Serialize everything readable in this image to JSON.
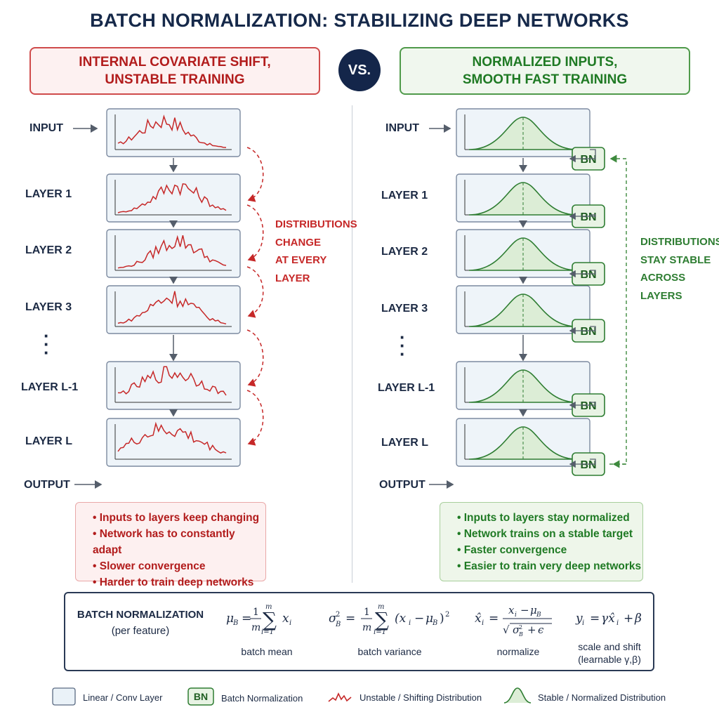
{
  "title": "BATCH NORMALIZATION: STABILIZING DEEP NETWORKS",
  "vs_label": "VS.",
  "left": {
    "banner_line1": "INTERNAL COVARIATE SHIFT,",
    "banner_line2": "UNSTABLE TRAINING",
    "input_label": "INPUT",
    "output_label": "OUTPUT",
    "layer_labels": [
      "LAYER 1",
      "LAYER 2",
      "LAYER 3",
      "LAYER L-1",
      "LAYER L"
    ],
    "side_note": [
      "DISTRIBUTIONS",
      "CHANGE",
      "AT EVERY",
      "LAYER"
    ],
    "bullets": [
      "Inputs to layers keep changing",
      "Network has to constantly adapt",
      "Slower convergence",
      "Harder to train deep networks"
    ],
    "color": "#c62828"
  },
  "right": {
    "banner_line1": "NORMALIZED INPUTS,",
    "banner_line2": "SMOOTH FAST TRAINING",
    "input_label": "INPUT",
    "output_label": "OUTPUT",
    "layer_labels": [
      "LAYER 1",
      "LAYER 2",
      "LAYER 3",
      "LAYER L-1",
      "LAYER L"
    ],
    "bn_label": "BN",
    "side_note": [
      "DISTRIBUTIONS",
      "STAY STABLE",
      "ACROSS",
      "LAYERS"
    ],
    "bullets": [
      "Inputs to layers stay normalized",
      "Network trains on a stable target",
      "Faster convergence",
      "Easier to train very deep networks"
    ],
    "color": "#2e7d32"
  },
  "formulas": {
    "title_line1": "BATCH NORMALIZATION",
    "title_line2": "(per feature)",
    "captions": [
      "batch mean",
      "batch variance",
      "normalize",
      "scale and shift",
      "(learnable γ,β)"
    ]
  },
  "legend": [
    {
      "icon": "layer-box-icon",
      "label": "Linear / Conv Layer"
    },
    {
      "icon": "bn-box-icon",
      "label": "Batch Normalization",
      "badge": "BN"
    },
    {
      "icon": "unstable-curve-icon",
      "label": "Unstable / Shifting Distribution"
    },
    {
      "icon": "stable-curve-icon",
      "label": "Stable / Normalized Distribution"
    }
  ]
}
